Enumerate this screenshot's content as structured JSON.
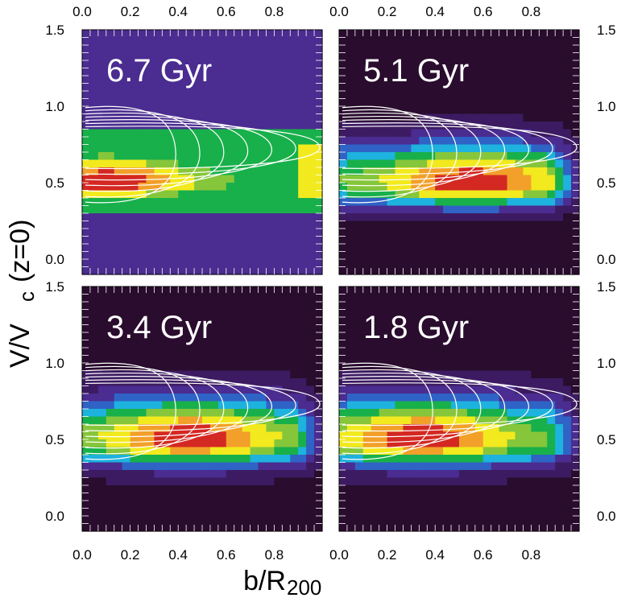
{
  "chart_data": {
    "type": "heatmap",
    "xlabel_main": "b/R",
    "xlabel_sub": "200",
    "ylabel_main": "V/V",
    "ylabel_sub": "c",
    "ylabel_tail": "(z=0)",
    "xlim": [
      0.0,
      1.0
    ],
    "ylim": [
      -0.1,
      1.5
    ],
    "x_ticks": [
      "0.0",
      "0.2",
      "0.4",
      "0.6",
      "0.8"
    ],
    "x_tick_values": [
      0.0,
      0.2,
      0.4,
      0.6,
      0.8
    ],
    "y_ticks": [
      "0.0",
      "0.5",
      "1.0",
      "1.5"
    ],
    "y_tick_values": [
      0.0,
      0.5,
      1.0,
      1.5
    ],
    "colormap": [
      "#2a0c2e",
      "#3d1b62",
      "#4b2c90",
      "#2f63c6",
      "#1eb2de",
      "#18b04a",
      "#86c63b",
      "#f2ea1e",
      "#f2a02a",
      "#d42822"
    ],
    "panels": [
      {
        "label": "6.7 Gyr",
        "position": "top-left",
        "peak_v": 0.5,
        "peak_b": 0.1,
        "width": 0.1,
        "bg": 2,
        "core_plateau": true,
        "edge_high": true
      },
      {
        "label": "5.1 Gyr",
        "position": "top-right",
        "peak_v": 0.5,
        "peak_b": 0.55,
        "width": 0.11,
        "bg": 0,
        "core_plateau": false,
        "edge_high": false
      },
      {
        "label": "3.4 Gyr",
        "position": "bottom-left",
        "peak_v": 0.5,
        "peak_b": 0.45,
        "width": 0.12,
        "bg": 0,
        "core_plateau": false,
        "edge_high": false
      },
      {
        "label": "1.8 Gyr",
        "position": "bottom-right",
        "peak_v": 0.5,
        "peak_b": 0.35,
        "width": 0.12,
        "bg": 0,
        "core_plateau": false,
        "edge_high": false
      }
    ]
  }
}
